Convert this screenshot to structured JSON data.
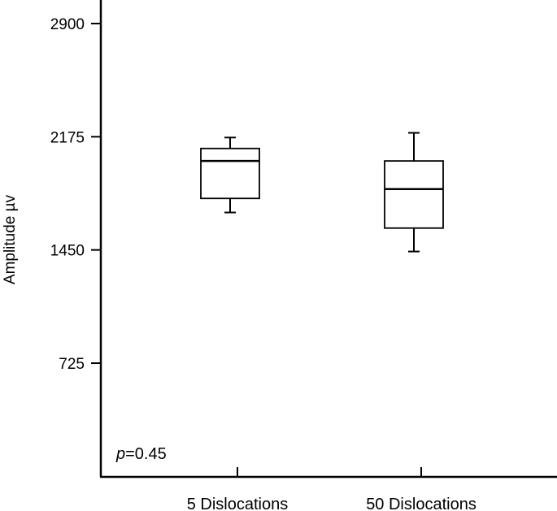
{
  "chart_data": {
    "type": "box",
    "ylabel": "Amplitude µv",
    "yticks": [
      725,
      1450,
      2175,
      2900
    ],
    "ytick_labels": [
      "725",
      "1450",
      "2175",
      "2900"
    ],
    "ylim": [
      0,
      3000
    ],
    "categories": [
      "5 Dislocations",
      "50 Dislocations"
    ],
    "boxes": [
      {
        "category": "5 Dislocations",
        "whisker_low": 1690,
        "q1": 1780,
        "median": 2020,
        "q3": 2100,
        "whisker_high": 2170
      },
      {
        "category": "50 Dislocations",
        "whisker_low": 1440,
        "q1": 1590,
        "median": 1840,
        "q3": 2020,
        "whisker_high": 2200
      }
    ],
    "annotation": {
      "p_symbol": "p",
      "p_value": "=0.45"
    },
    "grid": false
  }
}
